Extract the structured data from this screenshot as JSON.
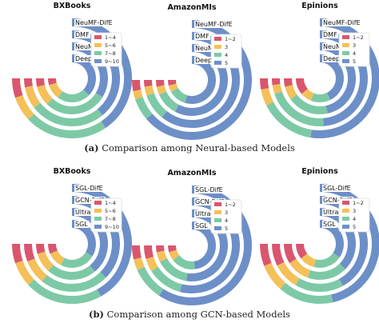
{
  "captions": [
    {
      "tag": "(a)",
      "text": "Comparison among Neural-based Models"
    },
    {
      "tag": "(b)",
      "text": "Comparison among GCN-based Models"
    }
  ],
  "colors": {
    "ring": "#6d8fc8",
    "seg": [
      "#d9566e",
      "#f4c05a",
      "#7dc9a6",
      "#6d8fc8"
    ]
  },
  "chart_data": [
    {
      "type": "radial-bar",
      "title": "BXBooks",
      "series": [
        {
          "name": "NeuMF-DifE",
          "values": [
            7,
            9,
            30,
            54
          ]
        },
        {
          "name": "DMF",
          "values": [
            4,
            10,
            34,
            52
          ]
        },
        {
          "name": "NeuMF",
          "values": [
            5,
            12,
            38,
            45
          ]
        },
        {
          "name": "DeepCF",
          "values": [
            6,
            14,
            30,
            50
          ]
        }
      ],
      "legend": [
        "1~4",
        "5~6",
        "7~8",
        "9~10"
      ]
    },
    {
      "type": "radial-bar",
      "title": "AmazonMIs",
      "series": [
        {
          "name": "NeuMF-DifE",
          "values": [
            4,
            3,
            8,
            85
          ]
        },
        {
          "name": "DMF",
          "values": [
            3,
            4,
            12,
            81
          ]
        },
        {
          "name": "NeuMF",
          "values": [
            4,
            5,
            14,
            77
          ]
        },
        {
          "name": "DeepCF",
          "values": [
            5,
            6,
            16,
            73
          ]
        }
      ],
      "legend": [
        "1~2",
        "3",
        "4",
        "5"
      ]
    },
    {
      "type": "radial-bar",
      "title": "Epinions",
      "series": [
        {
          "name": "NeuMF-DifE",
          "values": [
            4,
            6,
            20,
            70
          ]
        },
        {
          "name": "DMF",
          "values": [
            3,
            4,
            28,
            65
          ]
        },
        {
          "name": "NeuMF",
          "values": [
            5,
            8,
            25,
            62
          ]
        },
        {
          "name": "DeepCF",
          "values": [
            15,
            10,
            18,
            57
          ]
        }
      ],
      "legend": [
        "1~2",
        "3",
        "4",
        "5"
      ]
    },
    {
      "type": "radial-bar",
      "title": "BXBooks",
      "series": [
        {
          "name": "SGL-DifE",
          "values": [
            7,
            9,
            28,
            56
          ]
        },
        {
          "name": "GCN-DifE",
          "values": [
            8,
            11,
            31,
            50
          ]
        },
        {
          "name": "UltraGCN",
          "values": [
            6,
            12,
            30,
            52
          ]
        },
        {
          "name": "SGL",
          "values": [
            9,
            14,
            32,
            45
          ]
        }
      ],
      "legend": [
        "1~4",
        "5~6",
        "7~8",
        "9~10"
      ]
    },
    {
      "type": "radial-bar",
      "title": "AmazonMIs",
      "series": [
        {
          "name": "SGL-DifE",
          "values": [
            5,
            4,
            12,
            79
          ]
        },
        {
          "name": "GCN-DifE",
          "values": [
            6,
            6,
            16,
            72
          ]
        },
        {
          "name": "UltraGCN",
          "values": [
            4,
            6,
            20,
            70
          ]
        },
        {
          "name": "SGL",
          "values": [
            6,
            8,
            22,
            64
          ]
        }
      ],
      "legend": [
        "1~2",
        "3",
        "4",
        "5"
      ]
    },
    {
      "type": "radial-bar",
      "title": "Epinions",
      "series": [
        {
          "name": "SGL-DifE",
          "values": [
            8,
            10,
            20,
            62
          ]
        },
        {
          "name": "GCN-DifE",
          "values": [
            10,
            12,
            22,
            56
          ]
        },
        {
          "name": "UltraGCN",
          "values": [
            12,
            14,
            24,
            50
          ]
        },
        {
          "name": "SGL",
          "values": [
            14,
            14,
            26,
            46
          ]
        }
      ],
      "legend": [
        "1~2",
        "3",
        "4",
        "5"
      ]
    }
  ]
}
